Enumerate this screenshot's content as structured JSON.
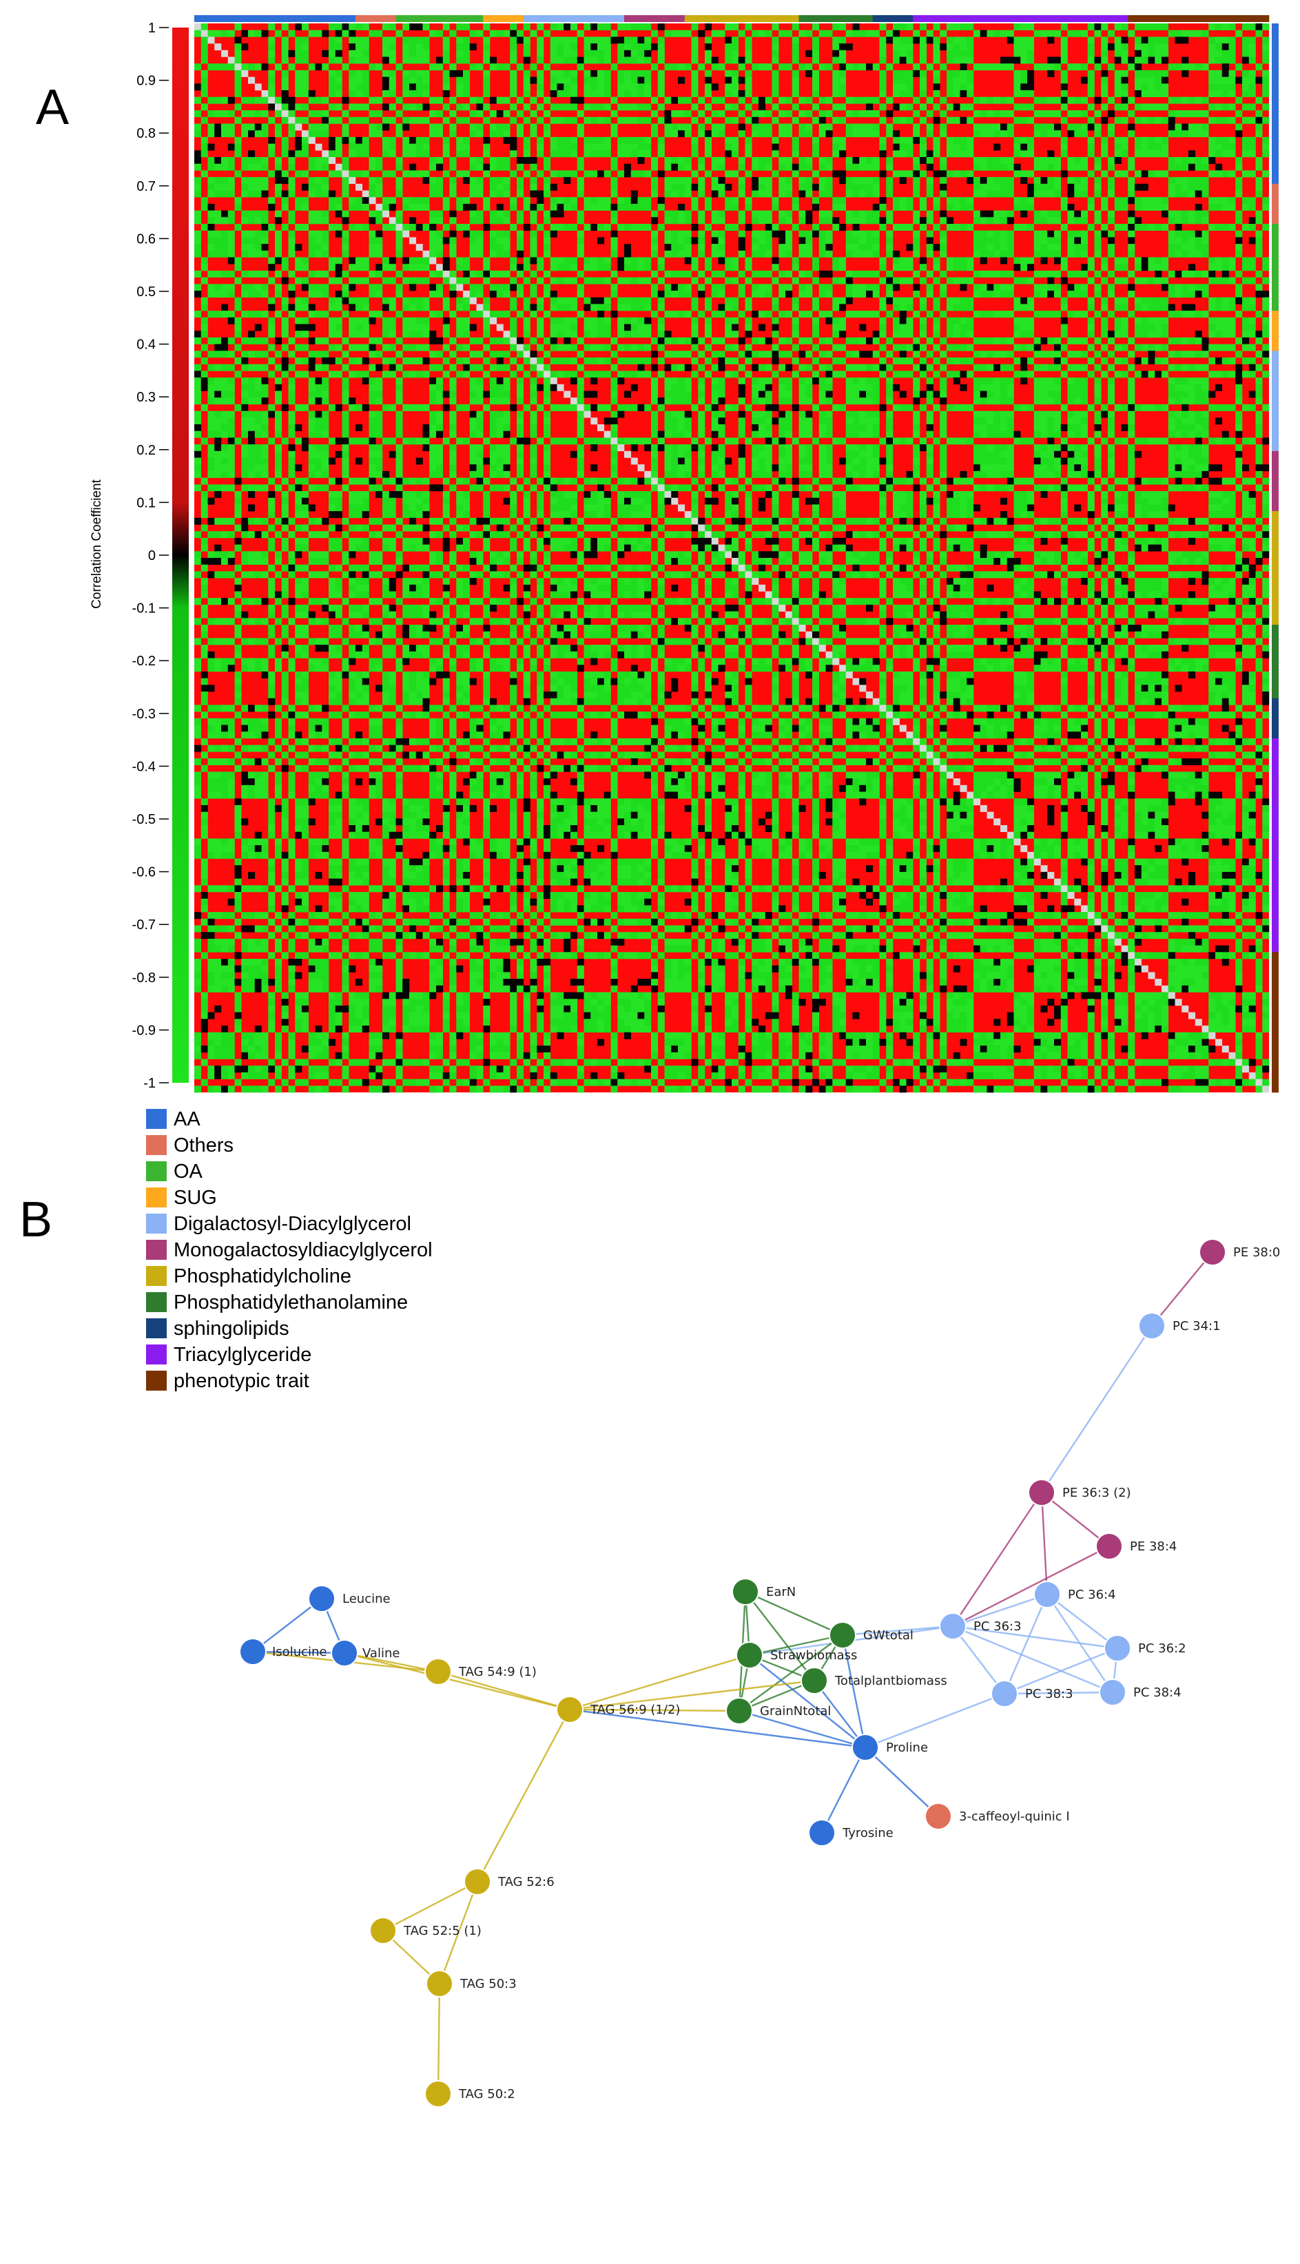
{
  "panels": {
    "a": "A",
    "b": "B"
  },
  "chart_data": [
    {
      "type": "heatmap",
      "title": "",
      "colorbar_label": "Correlation Coefficient",
      "color_scale": {
        "min": -1,
        "max": 1,
        "negative_color": "#00e000",
        "zero_color": "#000000",
        "positive_color": "#ff0000"
      },
      "colorbar_ticks": [
        "1",
        "0.9",
        "0.8",
        "0.7",
        "0.6",
        "0.5",
        "0.4",
        "0.3",
        "0.2",
        "0.1",
        "0",
        "-0.1",
        "-0.2",
        "-0.3",
        "-0.4",
        "-0.5",
        "-0.6",
        "-0.7",
        "-0.8",
        "-0.9",
        "-1"
      ],
      "matrix_size_approx": 160,
      "diagonal_value": 1,
      "class_order": [
        "AA",
        "Others",
        "OA",
        "SUG",
        "Digalactosyl-Diacylglycerol",
        "Monogalactosyldiacylglycerol",
        "Phosphatidylcholine",
        "Phosphatidylethanolamine",
        "sphingolipids",
        "Triacylglyceride",
        "phenotypic trait"
      ]
    },
    {
      "type": "network",
      "legend": [
        {
          "label": "AA",
          "color": "#2f6fd8"
        },
        {
          "label": "Others",
          "color": "#e0705a"
        },
        {
          "label": "OA",
          "color": "#3bb531"
        },
        {
          "label": "SUG",
          "color": "#ffa91f"
        },
        {
          "label": "Digalactosyl-Diacylglycerol",
          "color": "#8ab2f5"
        },
        {
          "label": "Monogalactosyldiacylglycerol",
          "color": "#a83b78"
        },
        {
          "label": "Phosphatidylcholine",
          "color": "#c9ad12"
        },
        {
          "label": "Phosphatidylethanolamine",
          "color": "#2e7d2e"
        },
        {
          "label": "sphingolipids",
          "color": "#17417d"
        },
        {
          "label": "Triacylglyceride",
          "color": "#8b1cf0"
        },
        {
          "label": "phenotypic trait",
          "color": "#7a3300"
        }
      ],
      "nodes": [
        {
          "id": "PE 38:0",
          "group": "Monogalactosyldiacylglycerol"
        },
        {
          "id": "PC 34:1",
          "group": "Digalactosyl-Diacylglycerol"
        },
        {
          "id": "PE 36:3 (2)",
          "group": "Monogalactosyldiacylglycerol"
        },
        {
          "id": "PE 38:4",
          "group": "Monogalactosyldiacylglycerol"
        },
        {
          "id": "PC 36:4",
          "group": "Digalactosyl-Diacylglycerol"
        },
        {
          "id": "PC 36:3",
          "group": "Digalactosyl-Diacylglycerol"
        },
        {
          "id": "PC 36:2",
          "group": "Digalactosyl-Diacylglycerol"
        },
        {
          "id": "PC 38:3",
          "group": "Digalactosyl-Diacylglycerol"
        },
        {
          "id": "PC 38:4",
          "group": "Digalactosyl-Diacylglycerol"
        },
        {
          "id": "EarN",
          "group": "Phosphatidylethanolamine"
        },
        {
          "id": "GWtotal",
          "group": "Phosphatidylethanolamine"
        },
        {
          "id": "Strawbiomass",
          "group": "Phosphatidylethanolamine"
        },
        {
          "id": "Totalplantbiomass",
          "group": "Phosphatidylethanolamine"
        },
        {
          "id": "GrainNtotal",
          "group": "Phosphatidylethanolamine"
        },
        {
          "id": "Proline",
          "group": "AA"
        },
        {
          "id": "Tyrosine",
          "group": "AA"
        },
        {
          "id": "3-caffeoyl-quinic I",
          "group": "Others"
        },
        {
          "id": "Leucine",
          "group": "AA"
        },
        {
          "id": "Isolucine",
          "group": "AA"
        },
        {
          "id": "Valine",
          "group": "AA"
        },
        {
          "id": "TAG 54:9 (1)",
          "group": "Phosphatidylcholine"
        },
        {
          "id": "TAG 56:9 (1/2)",
          "group": "Phosphatidylcholine"
        },
        {
          "id": "TAG 52:6",
          "group": "Phosphatidylcholine"
        },
        {
          "id": "TAG 52:5 (1)",
          "group": "Phosphatidylcholine"
        },
        {
          "id": "TAG 50:3",
          "group": "Phosphatidylcholine"
        },
        {
          "id": "TAG 50:2",
          "group": "Phosphatidylcholine"
        }
      ],
      "edges": [
        [
          "PE 38:0",
          "PC 34:1"
        ],
        [
          "PC 34:1",
          "PE 36:3 (2)"
        ],
        [
          "PE 36:3 (2)",
          "PE 38:4"
        ],
        [
          "PE 36:3 (2)",
          "PC 36:3"
        ],
        [
          "PE 36:3 (2)",
          "PC 36:4"
        ],
        [
          "PE 38:4",
          "PC 36:3"
        ],
        [
          "PC 36:3",
          "PC 36:4"
        ],
        [
          "PC 36:3",
          "PC 36:2"
        ],
        [
          "PC 36:3",
          "PC 38:4"
        ],
        [
          "PC 36:3",
          "PC 38:3"
        ],
        [
          "PC 36:4",
          "PC 36:2"
        ],
        [
          "PC 36:4",
          "PC 38:3"
        ],
        [
          "PC 36:4",
          "PC 38:4"
        ],
        [
          "PC 36:2",
          "PC 38:3"
        ],
        [
          "PC 36:2",
          "PC 38:4"
        ],
        [
          "PC 38:3",
          "PC 38:4"
        ],
        [
          "PC 38:3",
          "Proline"
        ],
        [
          "PC 36:3",
          "GWtotal"
        ],
        [
          "PC 36:3",
          "Strawbiomass"
        ],
        [
          "EarN",
          "GWtotal"
        ],
        [
          "EarN",
          "Strawbiomass"
        ],
        [
          "EarN",
          "Totalplantbiomass"
        ],
        [
          "EarN",
          "GrainNtotal"
        ],
        [
          "GWtotal",
          "Strawbiomass"
        ],
        [
          "GWtotal",
          "Totalplantbiomass"
        ],
        [
          "GWtotal",
          "GrainNtotal"
        ],
        [
          "Strawbiomass",
          "Totalplantbiomass"
        ],
        [
          "Strawbiomass",
          "GrainNtotal"
        ],
        [
          "Totalplantbiomass",
          "GrainNtotal"
        ],
        [
          "Proline",
          "GrainNtotal"
        ],
        [
          "Proline",
          "Totalplantbiomass"
        ],
        [
          "Proline",
          "Strawbiomass"
        ],
        [
          "Proline",
          "GWtotal"
        ],
        [
          "Proline",
          "Tyrosine"
        ],
        [
          "Proline",
          "3-caffeoyl-quinic I"
        ],
        [
          "Proline",
          "TAG 56:9 (1/2)"
        ],
        [
          "TAG 56:9 (1/2)",
          "Strawbiomass"
        ],
        [
          "TAG 56:9 (1/2)",
          "GrainNtotal"
        ],
        [
          "TAG 56:9 (1/2)",
          "Totalplantbiomass"
        ],
        [
          "TAG 56:9 (1/2)",
          "TAG 54:9 (1)"
        ],
        [
          "TAG 56:9 (1/2)",
          "Valine"
        ],
        [
          "TAG 56:9 (1/2)",
          "TAG 52:6"
        ],
        [
          "TAG 54:9 (1)",
          "Valine"
        ],
        [
          "TAG 54:9 (1)",
          "Isolucine"
        ],
        [
          "Leucine",
          "Valine"
        ],
        [
          "Leucine",
          "Isolucine"
        ],
        [
          "Isolucine",
          "Valine"
        ],
        [
          "TAG 52:6",
          "TAG 52:5 (1)"
        ],
        [
          "TAG 52:6",
          "TAG 50:3"
        ],
        [
          "TAG 52:5 (1)",
          "TAG 50:3"
        ],
        [
          "TAG 50:3",
          "TAG 50:2"
        ]
      ]
    }
  ]
}
